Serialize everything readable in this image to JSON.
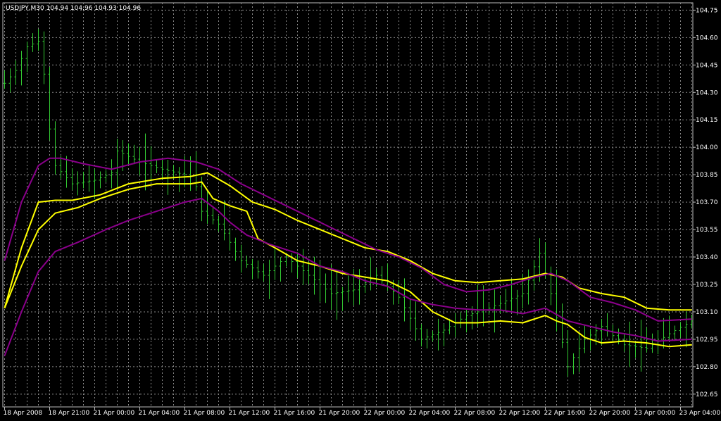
{
  "chart_data": {
    "type": "line",
    "header": "USDJPY,M30  104.94 104.96 104.93 104.96",
    "y_ticks": [
      "104.75",
      "104.60",
      "104.45",
      "104.30",
      "104.15",
      "104.00",
      "103.85",
      "103.70",
      "103.55",
      "103.40",
      "103.25",
      "103.10",
      "102.95",
      "102.80",
      "102.65"
    ],
    "y_tick_values": [
      104.75,
      104.6,
      104.45,
      104.3,
      104.15,
      104.0,
      103.85,
      103.7,
      103.55,
      103.4,
      103.25,
      103.1,
      102.95,
      102.8,
      102.65
    ],
    "ylim": [
      102.58,
      104.79
    ],
    "x_ticks": [
      "18 Apr 2008",
      "18 Apr 21:00",
      "21 Apr 00:00",
      "21 Apr 04:00",
      "21 Apr 08:00",
      "21 Apr 12:00",
      "21 Apr 16:00",
      "21 Apr 20:00",
      "22 Apr 00:00",
      "22 Apr 04:00",
      "22 Apr 08:00",
      "22 Apr 12:00",
      "22 Apr 16:00",
      "22 Apr 20:00",
      "23 Apr 00:00",
      "23 Apr 04:00"
    ],
    "x_tick_index": [
      0,
      8,
      16,
      24,
      32,
      40,
      48,
      56,
      64,
      72,
      80,
      88,
      96,
      104,
      112,
      120
    ],
    "bar_count": 123,
    "grid": true,
    "colors": {
      "background": "#000000",
      "grid": "#8a8a8a",
      "bars": "#33cc33",
      "yellow": "#ffff00",
      "purple": "#8b008b",
      "text": "#ffffff"
    },
    "price_keypoints": [
      [
        0,
        104.35
      ],
      [
        2,
        104.42
      ],
      [
        4,
        104.55
      ],
      [
        6,
        104.58
      ],
      [
        7,
        104.4
      ],
      [
        8,
        104.1
      ],
      [
        9,
        103.9
      ],
      [
        12,
        103.8
      ],
      [
        16,
        103.82
      ],
      [
        19,
        103.86
      ],
      [
        20,
        103.98
      ],
      [
        24,
        103.92
      ],
      [
        28,
        103.88
      ],
      [
        32,
        103.85
      ],
      [
        33,
        103.92
      ],
      [
        35,
        103.65
      ],
      [
        38,
        103.58
      ],
      [
        42,
        103.38
      ],
      [
        46,
        103.3
      ],
      [
        50,
        103.4
      ],
      [
        54,
        103.3
      ],
      [
        58,
        103.2
      ],
      [
        62,
        103.22
      ],
      [
        66,
        103.3
      ],
      [
        70,
        103.18
      ],
      [
        74,
        102.95
      ],
      [
        78,
        103.0
      ],
      [
        82,
        103.08
      ],
      [
        86,
        103.12
      ],
      [
        92,
        103.2
      ],
      [
        95,
        103.42
      ],
      [
        97,
        103.2
      ],
      [
        100,
        102.8
      ],
      [
        103,
        102.95
      ],
      [
        106,
        103.02
      ],
      [
        110,
        102.92
      ],
      [
        114,
        102.9
      ],
      [
        118,
        102.98
      ],
      [
        122,
        103.05
      ]
    ],
    "series": [
      {
        "color_key": "yellow",
        "points": [
          [
            0,
            103.12
          ],
          [
            3,
            103.45
          ],
          [
            6,
            103.7
          ],
          [
            9,
            103.71
          ],
          [
            12,
            103.71
          ],
          [
            17,
            103.74
          ],
          [
            22,
            103.8
          ],
          [
            28,
            103.83
          ],
          [
            33,
            103.84
          ],
          [
            36,
            103.86
          ],
          [
            40,
            103.79
          ],
          [
            44,
            103.7
          ],
          [
            48,
            103.66
          ],
          [
            52,
            103.6
          ],
          [
            56,
            103.55
          ],
          [
            60,
            103.5
          ],
          [
            64,
            103.45
          ],
          [
            68,
            103.43
          ],
          [
            72,
            103.38
          ],
          [
            76,
            103.31
          ],
          [
            80,
            103.27
          ],
          [
            84,
            103.26
          ],
          [
            88,
            103.27
          ],
          [
            92,
            103.28
          ],
          [
            96,
            103.31
          ],
          [
            99,
            103.29
          ],
          [
            102,
            103.23
          ],
          [
            106,
            103.2
          ],
          [
            110,
            103.18
          ],
          [
            114,
            103.12
          ],
          [
            118,
            103.11
          ],
          [
            122,
            103.11
          ]
        ]
      },
      {
        "color_key": "yellow",
        "points": [
          [
            0,
            103.12
          ],
          [
            3,
            103.35
          ],
          [
            6,
            103.55
          ],
          [
            9,
            103.64
          ],
          [
            13,
            103.67
          ],
          [
            17,
            103.72
          ],
          [
            22,
            103.77
          ],
          [
            27,
            103.8
          ],
          [
            33,
            103.8
          ],
          [
            35,
            103.81
          ],
          [
            37,
            103.72
          ],
          [
            40,
            103.68
          ],
          [
            43,
            103.65
          ],
          [
            45,
            103.5
          ],
          [
            48,
            103.45
          ],
          [
            52,
            103.38
          ],
          [
            56,
            103.35
          ],
          [
            60,
            103.31
          ],
          [
            64,
            103.29
          ],
          [
            68,
            103.27
          ],
          [
            72,
            103.21
          ],
          [
            76,
            103.1
          ],
          [
            80,
            103.04
          ],
          [
            84,
            103.04
          ],
          [
            88,
            103.05
          ],
          [
            92,
            103.04
          ],
          [
            96,
            103.08
          ],
          [
            98,
            103.05
          ],
          [
            100,
            103.03
          ],
          [
            103,
            102.96
          ],
          [
            106,
            102.93
          ],
          [
            110,
            102.94
          ],
          [
            114,
            102.93
          ],
          [
            118,
            102.91
          ],
          [
            122,
            102.92
          ]
        ]
      },
      {
        "color_key": "purple",
        "points": [
          [
            0,
            103.38
          ],
          [
            3,
            103.7
          ],
          [
            6,
            103.9
          ],
          [
            8,
            103.94
          ],
          [
            10,
            103.94
          ],
          [
            14,
            103.91
          ],
          [
            19,
            103.88
          ],
          [
            24,
            103.92
          ],
          [
            29,
            103.94
          ],
          [
            34,
            103.92
          ],
          [
            38,
            103.88
          ],
          [
            42,
            103.8
          ],
          [
            46,
            103.74
          ],
          [
            50,
            103.68
          ],
          [
            54,
            103.62
          ],
          [
            58,
            103.56
          ],
          [
            62,
            103.5
          ],
          [
            66,
            103.44
          ],
          [
            70,
            103.4
          ],
          [
            74,
            103.34
          ],
          [
            78,
            103.25
          ],
          [
            82,
            103.21
          ],
          [
            86,
            103.22
          ],
          [
            90,
            103.25
          ],
          [
            94,
            103.29
          ],
          [
            97,
            103.31
          ],
          [
            100,
            103.27
          ],
          [
            104,
            103.18
          ],
          [
            108,
            103.15
          ],
          [
            112,
            103.11
          ],
          [
            116,
            103.05
          ],
          [
            122,
            103.06
          ]
        ]
      },
      {
        "color_key": "purple",
        "points": [
          [
            0,
            102.86
          ],
          [
            3,
            103.1
          ],
          [
            6,
            103.32
          ],
          [
            9,
            103.43
          ],
          [
            13,
            103.48
          ],
          [
            18,
            103.55
          ],
          [
            22,
            103.6
          ],
          [
            27,
            103.65
          ],
          [
            32,
            103.7
          ],
          [
            35,
            103.72
          ],
          [
            38,
            103.65
          ],
          [
            40,
            103.59
          ],
          [
            43,
            103.52
          ],
          [
            47,
            103.47
          ],
          [
            52,
            103.42
          ],
          [
            56,
            103.35
          ],
          [
            60,
            103.32
          ],
          [
            64,
            103.27
          ],
          [
            68,
            103.24
          ],
          [
            72,
            103.17
          ],
          [
            76,
            103.14
          ],
          [
            80,
            103.12
          ],
          [
            84,
            103.11
          ],
          [
            88,
            103.11
          ],
          [
            92,
            103.09
          ],
          [
            96,
            103.12
          ],
          [
            100,
            103.05
          ],
          [
            104,
            103.02
          ],
          [
            108,
            102.99
          ],
          [
            112,
            102.97
          ],
          [
            116,
            102.94
          ],
          [
            122,
            102.95
          ]
        ]
      }
    ]
  }
}
